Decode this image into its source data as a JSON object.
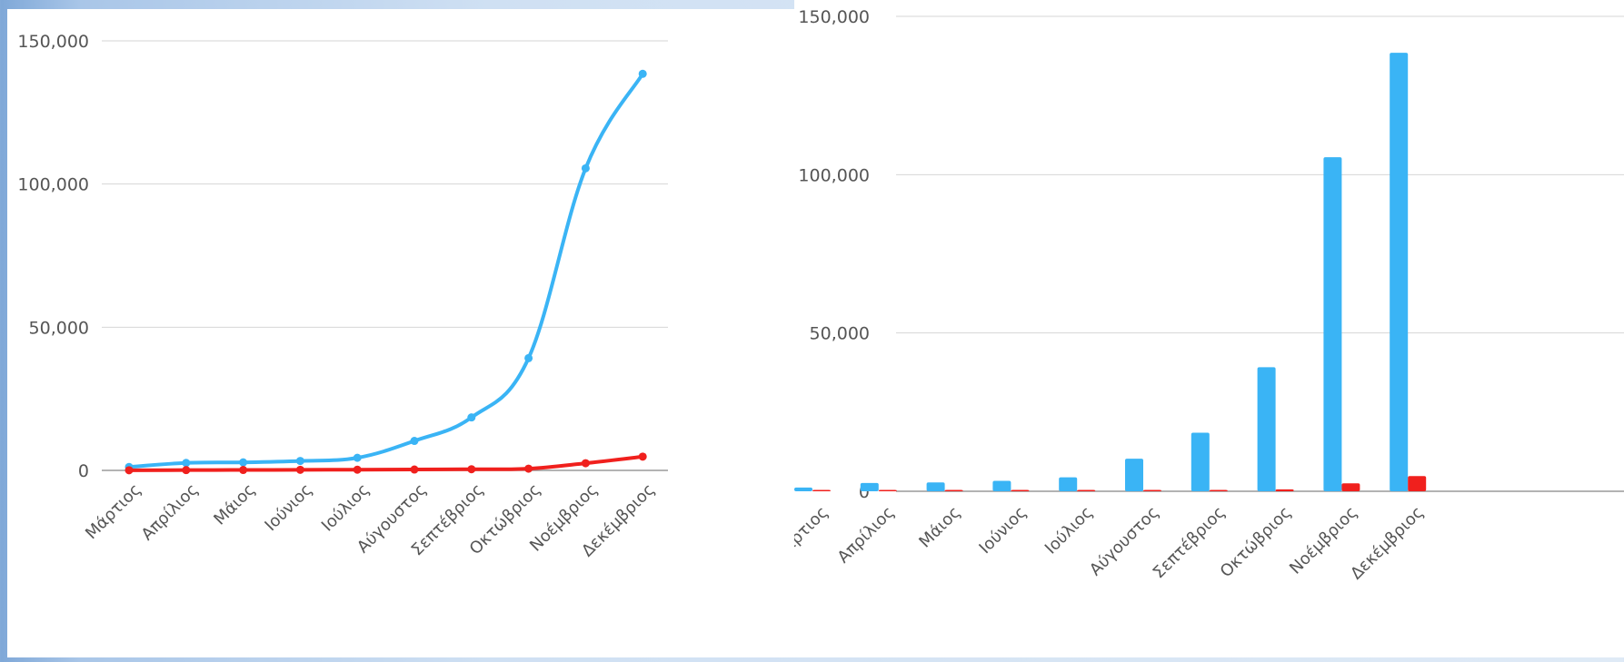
{
  "chart_data": [
    {
      "type": "line",
      "categories": [
        "Μάρτιος",
        "Απρίλιος",
        "Μάιος",
        "Ιούνιος",
        "Ιούλιος",
        "Αύγουστος",
        "Σεπτέβριος",
        "Οκτώβριος",
        "Νοέμβριος",
        "Δεκέμβριος"
      ],
      "series": [
        {
          "color": "#3ab4f5",
          "values": [
            1200,
            2600,
            2800,
            3300,
            4400,
            10300,
            18500,
            39200,
            105500,
            138500
          ]
        },
        {
          "color": "#f0201d",
          "values": [
            50,
            100,
            150,
            200,
            250,
            300,
            400,
            600,
            2500,
            4800
          ]
        }
      ],
      "yticks": [
        "0",
        "50,000",
        "100,000",
        "150,000"
      ],
      "ylim": [
        0,
        150000
      ],
      "grid": true
    },
    {
      "type": "bar",
      "categories": [
        "Μάρτιος",
        "Απρίλιος",
        "Μάιος",
        "Ιούνιος",
        "Ιούλιος",
        "Αύγουστος",
        "Σεπτέβριος",
        "Οκτώβριος",
        "Νοέμβριος",
        "Δεκέμβριος"
      ],
      "series": [
        {
          "color": "#3ab4f5",
          "values": [
            1200,
            2600,
            2800,
            3300,
            4400,
            10300,
            18500,
            39200,
            105500,
            138500
          ]
        },
        {
          "color": "#f0201d",
          "values": [
            50,
            100,
            150,
            200,
            250,
            300,
            400,
            600,
            2500,
            4800
          ]
        }
      ],
      "yticks": [
        "0",
        "50,000",
        "100,000",
        "150,000"
      ],
      "ylim": [
        0,
        150000
      ],
      "grid": true
    }
  ]
}
